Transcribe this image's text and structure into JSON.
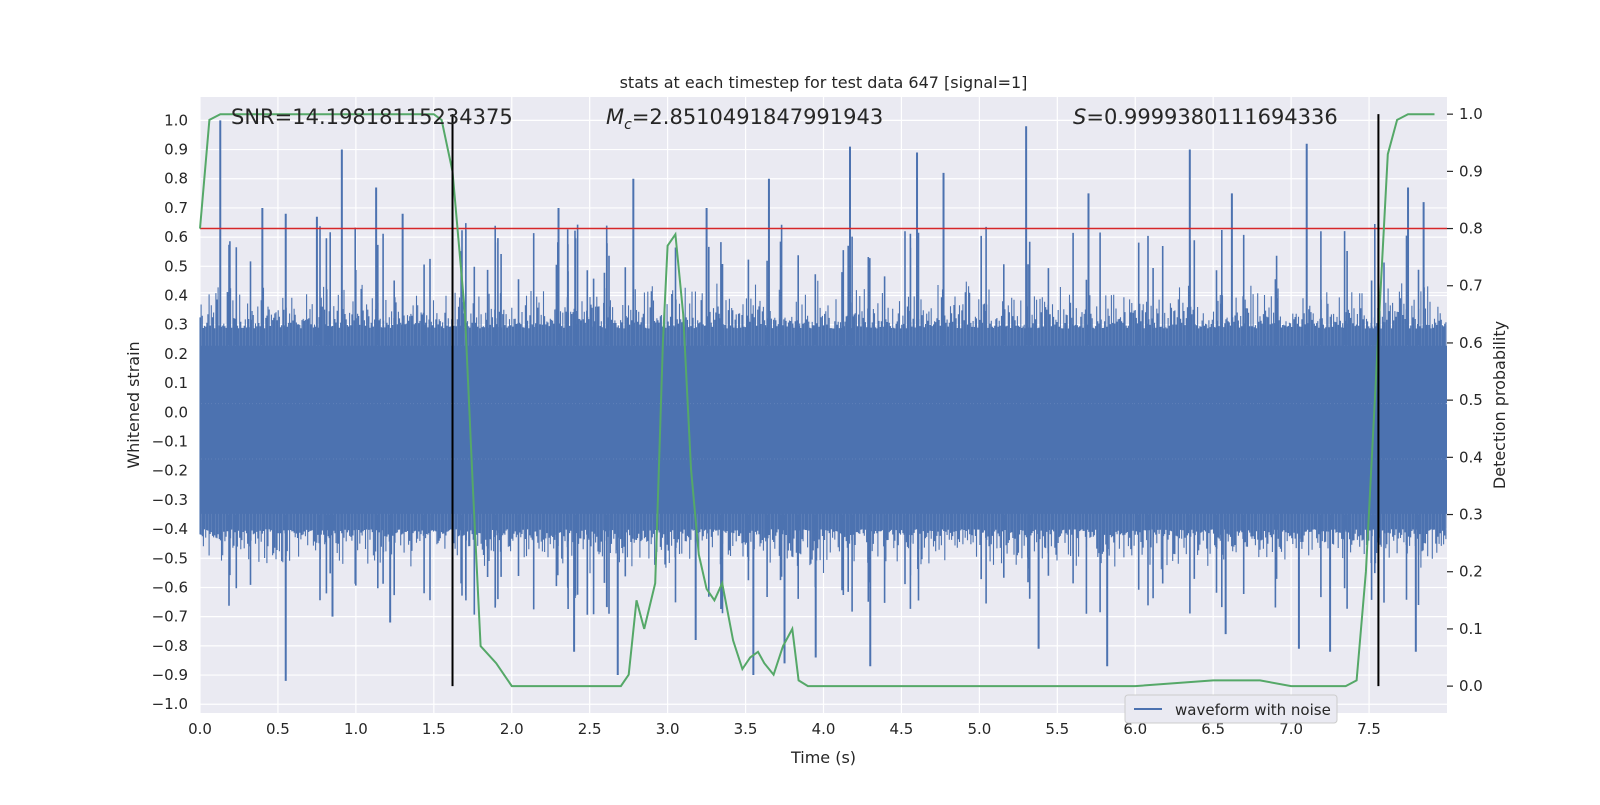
{
  "chart_data": {
    "type": "line",
    "title": "stats at each timestep for test data 647 [signal=1]",
    "xlabel": "Time (s)",
    "ylabel_left": "Whitened strain",
    "ylabel_right": "Detection probability",
    "xlim": [
      0,
      8
    ],
    "ylim_left": [
      -1.03,
      1.08
    ],
    "ylim_right": [
      -0.047,
      1.03
    ],
    "x_ticks": [
      "0.0",
      "0.5",
      "1.0",
      "1.5",
      "2.0",
      "2.5",
      "3.0",
      "3.5",
      "4.0",
      "4.5",
      "5.0",
      "5.5",
      "6.0",
      "6.5",
      "7.0",
      "7.5"
    ],
    "y_left_ticks": [
      "1.0",
      "0.9",
      "0.8",
      "0.7",
      "0.6",
      "0.5",
      "0.4",
      "0.3",
      "0.2",
      "0.1",
      "0.0",
      "-0.1",
      "-0.2",
      "-0.3",
      "-0.4",
      "-0.5",
      "-0.6",
      "-0.7",
      "-0.8",
      "-0.9",
      "-1.0"
    ],
    "y_right_ticks": [
      "1.0",
      "0.9",
      "0.8",
      "0.7",
      "0.6",
      "0.5",
      "0.4",
      "0.3",
      "0.2",
      "0.1",
      "0.0"
    ],
    "annotations": {
      "snr": "SNR=14.19818115234375",
      "mc_symbol": "M",
      "mc_sub": "c",
      "mc_value": "=2.8510491847991943",
      "s_symbol": "S",
      "s_value": "=0.9999380111694336"
    },
    "legend": {
      "entries": [
        "waveform with noise"
      ],
      "placement": "lower-right"
    },
    "grid": true,
    "colors": {
      "background": "#eaeaf2",
      "grid": "#ffffff",
      "waveform": "#4c72b0",
      "probability": "#55a868",
      "threshold": "#d62728",
      "markers": "#000000"
    },
    "threshold_probability": 0.8,
    "vertical_markers_time": [
      1.62,
      7.56
    ],
    "waveform_envelope": {
      "band_upper": 0.23,
      "band_lower": -0.35,
      "typical_peak_upper": 0.42,
      "typical_peak_lower": -0.52,
      "spikes_upper": [
        {
          "x": 0.13,
          "y": 1.0
        },
        {
          "x": 0.4,
          "y": 0.7
        },
        {
          "x": 0.55,
          "y": 0.68
        },
        {
          "x": 0.75,
          "y": 0.67
        },
        {
          "x": 0.91,
          "y": 0.9
        },
        {
          "x": 1.13,
          "y": 0.77
        },
        {
          "x": 1.3,
          "y": 0.68
        },
        {
          "x": 2.3,
          "y": 0.7
        },
        {
          "x": 2.78,
          "y": 0.8
        },
        {
          "x": 3.25,
          "y": 0.7
        },
        {
          "x": 3.65,
          "y": 0.8
        },
        {
          "x": 4.17,
          "y": 0.91
        },
        {
          "x": 4.6,
          "y": 0.89
        },
        {
          "x": 4.77,
          "y": 0.82
        },
        {
          "x": 5.3,
          "y": 0.98
        },
        {
          "x": 5.7,
          "y": 0.75
        },
        {
          "x": 6.35,
          "y": 0.9
        },
        {
          "x": 6.62,
          "y": 0.75
        },
        {
          "x": 7.1,
          "y": 0.92
        },
        {
          "x": 7.75,
          "y": 0.77
        },
        {
          "x": 7.85,
          "y": 0.72
        }
      ],
      "spikes_lower": [
        {
          "x": 0.55,
          "y": -0.92
        },
        {
          "x": 0.85,
          "y": -0.7
        },
        {
          "x": 1.22,
          "y": -0.72
        },
        {
          "x": 2.4,
          "y": -0.82
        },
        {
          "x": 2.68,
          "y": -0.9
        },
        {
          "x": 3.18,
          "y": -0.78
        },
        {
          "x": 3.55,
          "y": -0.9
        },
        {
          "x": 3.75,
          "y": -0.86
        },
        {
          "x": 3.95,
          "y": -0.84
        },
        {
          "x": 4.3,
          "y": -0.87
        },
        {
          "x": 5.38,
          "y": -0.81
        },
        {
          "x": 5.82,
          "y": -0.87
        },
        {
          "x": 6.58,
          "y": -0.76
        },
        {
          "x": 7.05,
          "y": -0.81
        },
        {
          "x": 7.25,
          "y": -0.82
        },
        {
          "x": 7.8,
          "y": -0.82
        }
      ]
    },
    "probability_series": {
      "x": [
        0.0,
        0.06,
        0.13,
        0.3,
        0.6,
        0.9,
        1.2,
        1.5,
        1.55,
        1.62,
        1.7,
        1.75,
        1.8,
        1.9,
        1.95,
        2.0,
        2.05,
        2.2,
        2.4,
        2.6,
        2.7,
        2.75,
        2.8,
        2.85,
        2.92,
        2.97,
        3.0,
        3.05,
        3.1,
        3.15,
        3.2,
        3.25,
        3.3,
        3.35,
        3.42,
        3.48,
        3.53,
        3.58,
        3.62,
        3.68,
        3.74,
        3.8,
        3.84,
        3.9,
        4.5,
        5.0,
        5.5,
        6.0,
        6.5,
        6.8,
        7.0,
        7.2,
        7.35,
        7.42,
        7.48,
        7.56,
        7.62,
        7.68,
        7.75,
        7.92
      ],
      "y": [
        0.8,
        0.99,
        1.0,
        1.0,
        1.0,
        1.0,
        1.0,
        1.0,
        0.99,
        0.9,
        0.65,
        0.35,
        0.07,
        0.04,
        0.02,
        0.0,
        0.0,
        0.0,
        0.0,
        0.0,
        0.0,
        0.02,
        0.15,
        0.1,
        0.18,
        0.6,
        0.77,
        0.79,
        0.65,
        0.38,
        0.23,
        0.17,
        0.15,
        0.18,
        0.08,
        0.03,
        0.05,
        0.06,
        0.04,
        0.02,
        0.07,
        0.1,
        0.01,
        0.0,
        0.0,
        0.0,
        0.0,
        0.0,
        0.01,
        0.01,
        0.0,
        0.0,
        0.0,
        0.01,
        0.2,
        0.62,
        0.93,
        0.99,
        1.0,
        1.0
      ]
    }
  }
}
